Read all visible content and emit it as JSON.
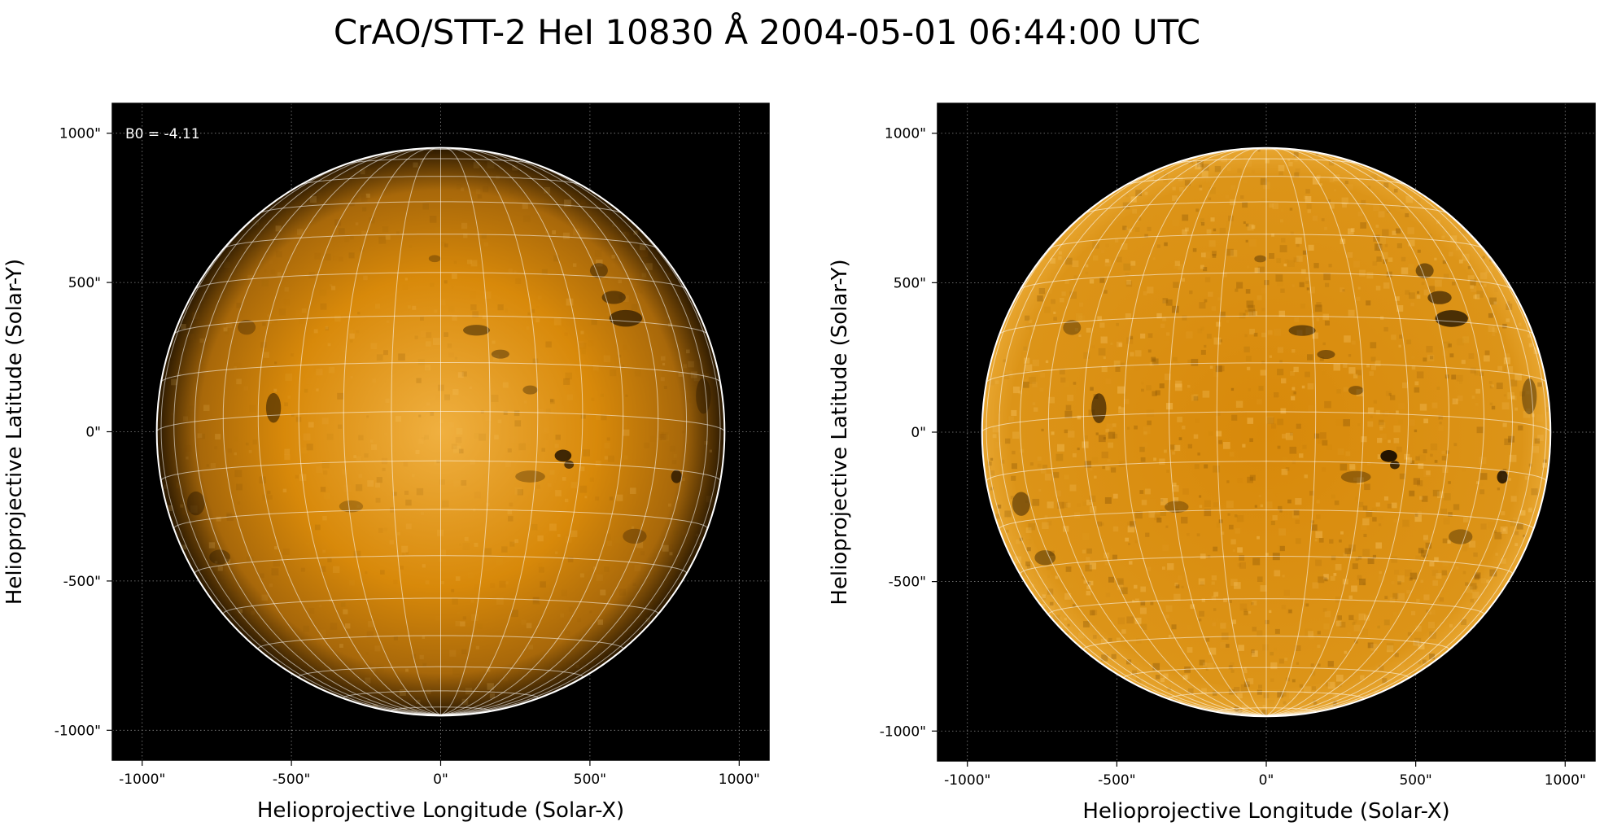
{
  "figure": {
    "title": "CrAO/STT-2 HeI 10830 Å 2004-05-01 06:44:00 UTC"
  },
  "colors": {
    "figure_background": "#ffffff",
    "plot_background": "#000000",
    "disk_base": "#d8890a",
    "disk_bright": "#f0b040",
    "limb_dark": "#2a1800",
    "grid": "#ffffff",
    "limb_circle": "#ffffff"
  },
  "panels": [
    {
      "id": "left",
      "annotation": "B0 = -4.11",
      "xlabel": "Helioprojective Longitude (Solar-X)",
      "ylabel": "Helioprojective Latitude (Solar-Y)",
      "xticks": [
        -1000,
        -500,
        0,
        500,
        1000
      ],
      "yticks": [
        -1000,
        -500,
        0,
        500,
        1000
      ],
      "xtick_labels": [
        "-1000\"",
        "-500\"",
        "0\"",
        "500\"",
        "1000\""
      ],
      "ytick_labels": [
        "-1000\"",
        "-500\"",
        "0\"",
        "500\"",
        "1000\""
      ],
      "xlim": [
        -1100,
        1100
      ],
      "ylim": [
        -1100,
        1100
      ],
      "solar_radius_arcsec": 951,
      "stonyhurst_grid_spacing_deg": 10,
      "style": "limb-darkened"
    },
    {
      "id": "right",
      "annotation": "",
      "xlabel": "Helioprojective Longitude (Solar-X)",
      "ylabel": "Helioprojective Latitude (Solar-Y)",
      "xticks": [
        -1000,
        -500,
        0,
        500,
        1000
      ],
      "yticks": [
        -1000,
        -500,
        0,
        500,
        1000
      ],
      "xtick_labels": [
        "-1000\"",
        "-500\"",
        "0\"",
        "500\"",
        "1000\""
      ],
      "ytick_labels": [
        "-1000\"",
        "-500\"",
        "0\"",
        "500\"",
        "1000\""
      ],
      "xlim": [
        -1100,
        1100
      ],
      "ylim": [
        -1100,
        1100
      ],
      "solar_radius_arcsec": 951,
      "stonyhurst_grid_spacing_deg": 10,
      "style": "limb-corrected"
    }
  ]
}
